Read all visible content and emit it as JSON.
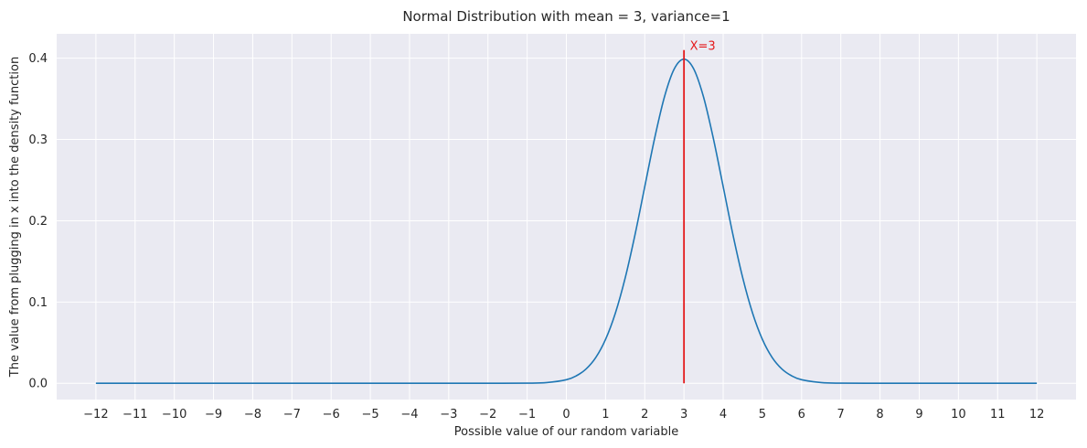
{
  "chart_data": {
    "type": "line",
    "title": "Normal Distribution with mean = 3, variance=1",
    "xlabel": "Possible value of our random variable",
    "ylabel": "The value from plugging in x into the density function",
    "xlim": [
      -13,
      13
    ],
    "ylim": [
      -0.02,
      0.43
    ],
    "xticks": [
      -12,
      -11,
      -10,
      -9,
      -8,
      -7,
      -6,
      -5,
      -4,
      -3,
      -2,
      -1,
      0,
      1,
      2,
      3,
      4,
      5,
      6,
      7,
      8,
      9,
      10,
      11,
      12
    ],
    "xtick_labels": [
      "−12",
      "−11",
      "−10",
      "−9",
      "−8",
      "−7",
      "−6",
      "−5",
      "−4",
      "−3",
      "−2",
      "−1",
      "0",
      "1",
      "2",
      "3",
      "4",
      "5",
      "6",
      "7",
      "8",
      "9",
      "10",
      "11",
      "12"
    ],
    "yticks": [
      0.0,
      0.1,
      0.2,
      0.3,
      0.4
    ],
    "ytick_labels": [
      "0.0",
      "0.1",
      "0.2",
      "0.3",
      "0.4"
    ],
    "grid": true,
    "series": [
      {
        "color": "#1f77b4",
        "x": [
          -12,
          -11,
          -10,
          -9,
          -8,
          -7,
          -6,
          -5,
          -4,
          -3,
          -2,
          -1,
          -0.5,
          0,
          0.25,
          0.5,
          0.75,
          1,
          1.25,
          1.5,
          1.75,
          2,
          2.25,
          2.5,
          2.75,
          3,
          3.25,
          3.5,
          3.75,
          4,
          4.25,
          4.5,
          4.75,
          5,
          5.25,
          5.5,
          5.75,
          6,
          6.5,
          7,
          8,
          9,
          10,
          11,
          12
        ],
        "y": [
          0,
          0,
          0,
          0,
          0,
          0,
          0,
          0,
          0,
          0,
          1.5e-06,
          0.000134,
          0.00087,
          0.0044,
          0.0091,
          0.0175,
          0.0317,
          0.054,
          0.0863,
          0.1295,
          0.1826,
          0.242,
          0.3011,
          0.3521,
          0.3867,
          0.3989,
          0.3867,
          0.3521,
          0.3011,
          0.242,
          0.1826,
          0.1295,
          0.0863,
          0.054,
          0.0317,
          0.0175,
          0.0091,
          0.0044,
          0.00087,
          0.000134,
          1.5e-06,
          0,
          0,
          0,
          0
        ]
      }
    ],
    "vline": {
      "x": 3,
      "ymin": 0.0,
      "ymax": 0.41,
      "color": "#e41a1c"
    },
    "annotation": {
      "text": "X=3",
      "x": 3.15,
      "y": 0.4105,
      "color": "#e41a1c"
    },
    "background_color": "#eaeaf2",
    "grid_color": "#ffffff"
  }
}
